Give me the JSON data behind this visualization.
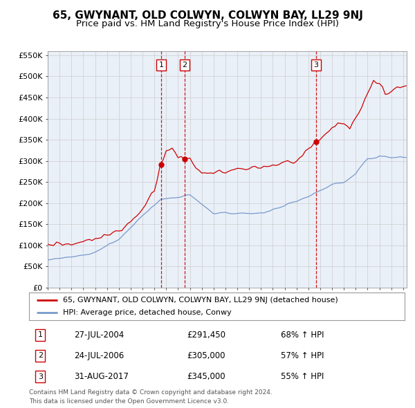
{
  "title": "65, GWYNANT, OLD COLWYN, COLWYN BAY, LL29 9NJ",
  "subtitle": "Price paid vs. HM Land Registry's House Price Index (HPI)",
  "title_fontsize": 11,
  "subtitle_fontsize": 9.5,
  "background_color": "#ffffff",
  "plot_bg_color": "#eaf0f8",
  "grid_color": "#cccccc",
  "ylim": [
    0,
    560000
  ],
  "yticks": [
    0,
    50000,
    100000,
    150000,
    200000,
    250000,
    300000,
    350000,
    400000,
    450000,
    500000,
    550000
  ],
  "ytick_labels": [
    "£0",
    "£50K",
    "£100K",
    "£150K",
    "£200K",
    "£250K",
    "£300K",
    "£350K",
    "£400K",
    "£450K",
    "£500K",
    "£550K"
  ],
  "xlim_start": 1995.0,
  "xlim_end": 2025.3,
  "sale_dates": [
    2004.57,
    2006.56,
    2017.66
  ],
  "sale_prices": [
    291450,
    305000,
    345000
  ],
  "sale_labels": [
    "1",
    "2",
    "3"
  ],
  "sale_date_strs": [
    "27-JUL-2004",
    "24-JUL-2006",
    "31-AUG-2017"
  ],
  "sale_price_strs": [
    "£291,450",
    "£305,000",
    "£345,000"
  ],
  "sale_hpi_strs": [
    "68% ↑ HPI",
    "57% ↑ HPI",
    "55% ↑ HPI"
  ],
  "legend_line1": "65, GWYNANT, OLD COLWYN, COLWYN BAY, LL29 9NJ (detached house)",
  "legend_line2": "HPI: Average price, detached house, Conwy",
  "footer1": "Contains HM Land Registry data © Crown copyright and database right 2024.",
  "footer2": "This data is licensed under the Open Government Licence v3.0.",
  "red_line_color": "#cc0000",
  "blue_line_color": "#7799cc"
}
